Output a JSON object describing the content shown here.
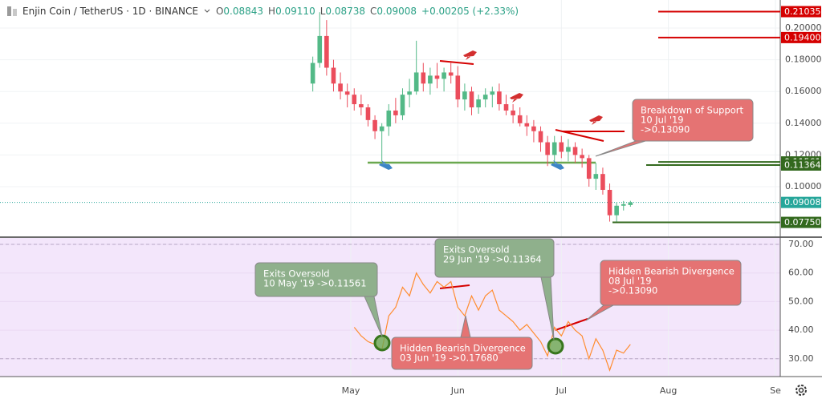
{
  "header": {
    "symbol": "Enjin Coin / TetherUS · 1D · BINANCE",
    "ohlc": [
      {
        "key": "O",
        "value": "0.08843"
      },
      {
        "key": "H",
        "value": "0.09110"
      },
      {
        "key": "L",
        "value": "0.08738"
      },
      {
        "key": "C",
        "value": "0.09008"
      }
    ],
    "change": "+0.00205 (+2.33%)"
  },
  "chart_data": [
    {
      "type": "candlestick",
      "categories": [
        null,
        null,
        null,
        null,
        null,
        null,
        null,
        null,
        null,
        null,
        null,
        null,
        null,
        null,
        null,
        null,
        null,
        null,
        null,
        null,
        null,
        null,
        null,
        null,
        null,
        null,
        null,
        null,
        null,
        null,
        null,
        null,
        null,
        null,
        null,
        null,
        null,
        null,
        null,
        null,
        null,
        null,
        null,
        null,
        null,
        null,
        null
      ],
      "open": [
        0.165,
        0.178,
        0.195,
        0.175,
        0.165,
        0.16,
        0.158,
        0.152,
        0.15,
        0.142,
        0.135,
        0.138,
        0.148,
        0.145,
        0.158,
        0.16,
        0.172,
        0.165,
        0.17,
        0.168,
        0.172,
        0.17,
        0.155,
        0.16,
        0.15,
        0.155,
        0.158,
        0.16,
        0.152,
        0.148,
        0.145,
        0.14,
        0.138,
        0.135,
        0.128,
        0.12,
        0.128,
        0.122,
        0.125,
        0.12,
        0.118,
        0.105,
        0.108,
        0.098,
        0.082,
        0.088,
        0.08843
      ],
      "high": [
        0.182,
        0.21,
        0.205,
        0.18,
        0.172,
        0.165,
        0.162,
        0.158,
        0.152,
        0.145,
        0.14,
        0.152,
        0.156,
        0.162,
        0.168,
        0.192,
        0.178,
        0.175,
        0.178,
        0.175,
        0.178,
        0.176,
        0.165,
        0.163,
        0.158,
        0.162,
        0.163,
        0.165,
        0.158,
        0.152,
        0.15,
        0.145,
        0.142,
        0.138,
        0.132,
        0.132,
        0.132,
        0.13,
        0.128,
        0.124,
        0.12,
        0.115,
        0.112,
        0.102,
        0.09,
        0.091,
        0.0911
      ],
      "low": [
        0.16,
        0.175,
        0.17,
        0.16,
        0.155,
        0.15,
        0.148,
        0.145,
        0.138,
        0.13,
        0.116,
        0.132,
        0.14,
        0.142,
        0.15,
        0.158,
        0.16,
        0.158,
        0.162,
        0.16,
        0.165,
        0.15,
        0.148,
        0.145,
        0.146,
        0.15,
        0.15,
        0.148,
        0.145,
        0.14,
        0.138,
        0.132,
        0.128,
        0.122,
        0.113,
        0.116,
        0.118,
        0.116,
        0.115,
        0.112,
        0.1,
        0.098,
        0.095,
        0.078,
        0.078,
        0.085,
        0.08738
      ],
      "close": [
        0.178,
        0.195,
        0.175,
        0.165,
        0.16,
        0.158,
        0.152,
        0.15,
        0.142,
        0.135,
        0.138,
        0.148,
        0.145,
        0.158,
        0.16,
        0.172,
        0.165,
        0.17,
        0.168,
        0.172,
        0.17,
        0.155,
        0.16,
        0.15,
        0.155,
        0.158,
        0.16,
        0.152,
        0.148,
        0.145,
        0.14,
        0.138,
        0.135,
        0.128,
        0.12,
        0.128,
        0.122,
        0.125,
        0.12,
        0.118,
        0.105,
        0.108,
        0.098,
        0.082,
        0.088,
        0.089,
        0.09008
      ],
      "up_color": "#53b987",
      "down_color": "#eb4d5c",
      "xlim": [
        -45.3,
        67.7
      ],
      "xticks": [
        {
          "value": 5.5,
          "label": "May"
        },
        {
          "value": 21,
          "label": "Jun"
        },
        {
          "value": 36,
          "label": "Jul"
        },
        {
          "value": 51.5,
          "label": "Aug"
        },
        {
          "value": 67,
          "label": "Se"
        }
      ],
      "ylim": [
        0.06869,
        0.21768
      ],
      "yticks": [
        {
          "value": 0.1,
          "label": "0.10000"
        },
        {
          "value": 0.12,
          "label": "0.12000"
        },
        {
          "value": 0.14,
          "label": "0.14000"
        },
        {
          "value": 0.16,
          "label": "0.16000"
        },
        {
          "value": 0.18,
          "label": "0.18000"
        },
        {
          "value": 0.2,
          "label": "0.20000"
        }
      ],
      "grid": true,
      "levels": [
        {
          "value": 0.21035,
          "label": "0.21035",
          "color": "#d50000"
        },
        {
          "value": 0.194,
          "label": "0.19400",
          "color": "#d50000"
        },
        {
          "value": 0.11561,
          "label": "0.11561",
          "color": "#33691e"
        },
        {
          "value": 0.11364,
          "label": "0.11364",
          "color": "#33691e"
        },
        {
          "value": 0.09008,
          "label": "0.09008",
          "color": "#26a69a"
        },
        {
          "value": 0.0775,
          "label": "0.07750",
          "color": "#33691e"
        }
      ],
      "annotations": [
        {
          "lines": [
            "Breakdown of Support",
            "10 Jul '19",
            "->0.13090"
          ],
          "color": "#e57373"
        }
      ]
    },
    {
      "type": "line",
      "values": [
        null,
        null,
        null,
        null,
        null,
        null,
        41,
        38,
        36,
        35,
        33,
        45,
        48,
        55,
        52,
        60,
        56,
        53,
        57,
        55,
        57,
        48,
        45,
        52,
        47,
        52,
        54,
        47,
        45,
        43,
        40,
        42,
        39,
        36,
        31,
        41,
        38,
        43,
        40,
        38,
        30,
        37,
        33,
        26,
        33,
        32,
        35
      ],
      "color": "#ff8c2f",
      "ylim": [
        23.78,
        72.24
      ],
      "yticks": [
        {
          "value": 30,
          "label": "30.00"
        },
        {
          "value": 40,
          "label": "40.00"
        },
        {
          "value": 50,
          "label": "50.00"
        },
        {
          "value": 60,
          "label": "60.00"
        },
        {
          "value": 70,
          "label": "70.00"
        }
      ],
      "band": [
        30,
        70
      ],
      "annotations": [
        {
          "lines": [
            "Exits Oversold",
            "10 May '19 ->0.11561"
          ],
          "color": "#8fb08c"
        },
        {
          "lines": [
            "Hidden Bearish Divergence",
            "03 Jun '19 ->0.17680"
          ],
          "color": "#e57373"
        },
        {
          "lines": [
            "Exits Oversold",
            "29 Jun '19 ->0.11364"
          ],
          "color": "#8fb08c"
        },
        {
          "lines": [
            "Hidden Bearish Divergence",
            "08 Jul '19",
            "->0.13090"
          ],
          "color": "#e57373"
        }
      ]
    }
  ]
}
